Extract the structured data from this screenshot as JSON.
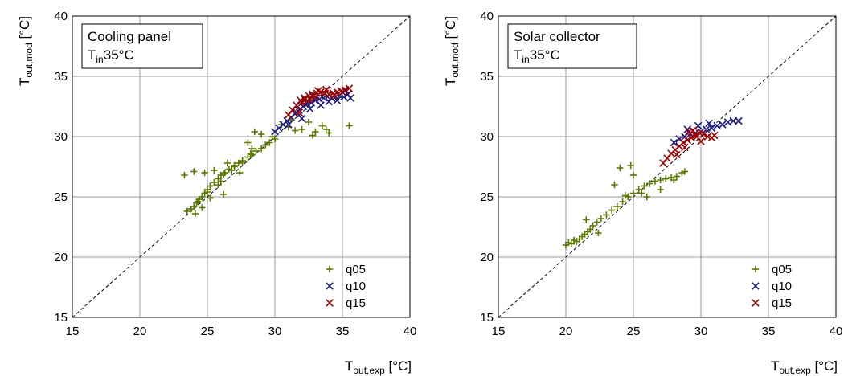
{
  "chart_data": [
    {
      "type": "scatter",
      "title": "",
      "annotation": {
        "line1": "Cooling panel",
        "line2_main": "T",
        "line2_sub": "in",
        "line2_rest": "35°C"
      },
      "xlabel": {
        "main": "T",
        "sub": "out,exp",
        "rest": " [°C]"
      },
      "ylabel": {
        "main": "T",
        "sub": "out,mod",
        "rest": " [°C]"
      },
      "xlim": [
        15,
        40
      ],
      "ylim": [
        15,
        40
      ],
      "xticks": [
        15,
        20,
        25,
        30,
        35,
        40
      ],
      "yticks": [
        15,
        20,
        25,
        30,
        35,
        40
      ],
      "grid": true,
      "reference_line": "y = x (dashed)",
      "legend_position": "bottom-right",
      "series": [
        {
          "name": "q05",
          "marker": "+",
          "color": "#5a7a00",
          "x": [
            23.5,
            23.8,
            24.0,
            24.2,
            24.4,
            24.6,
            24.8,
            25.0,
            25.2,
            25.5,
            25.8,
            26.0,
            26.3,
            26.6,
            27.0,
            27.3,
            27.6,
            28.0,
            28.3,
            28.6,
            29.0,
            29.3,
            29.6,
            30.0,
            24.1,
            24.6,
            25.2,
            26.0,
            26.8,
            27.6,
            28.2,
            23.3,
            24.0,
            24.8,
            25.5,
            26.2,
            27.0,
            28.0,
            28.5,
            29.0,
            29.8,
            30.5,
            31.0,
            31.5,
            32.0,
            32.5,
            33.0,
            33.5,
            34.0,
            35.5,
            31.2,
            32.8,
            33.8,
            28.3,
            27.4,
            26.5,
            25.8,
            24.3,
            25.0,
            26.2
          ],
          "y": [
            23.8,
            24.0,
            24.2,
            24.5,
            24.8,
            25.0,
            25.3,
            25.6,
            25.9,
            26.2,
            26.5,
            26.8,
            27.0,
            27.3,
            27.6,
            27.8,
            28.0,
            28.3,
            28.5,
            28.8,
            29.0,
            29.3,
            29.5,
            29.8,
            23.6,
            24.1,
            24.9,
            26.3,
            27.2,
            27.9,
            28.6,
            26.8,
            27.1,
            27.0,
            27.2,
            26.9,
            27.5,
            29.5,
            30.4,
            30.2,
            30.0,
            31.0,
            30.8,
            30.5,
            30.6,
            31.2,
            30.4,
            30.9,
            30.3,
            30.9,
            31.4,
            30.1,
            30.6,
            29.0,
            27.0,
            27.8,
            26.0,
            24.6,
            25.4,
            25.2
          ]
        },
        {
          "name": "q10",
          "marker": "x",
          "color": "#1a1a80",
          "x": [
            30.0,
            30.3,
            30.6,
            30.9,
            31.2,
            31.5,
            31.8,
            32.1,
            32.4,
            32.7,
            33.0,
            33.3,
            33.6,
            33.9,
            34.2,
            34.5,
            34.8,
            35.1,
            35.4,
            35.6,
            31.0,
            31.6,
            32.2,
            32.8,
            33.4,
            34.0,
            34.6,
            35.2,
            32.0,
            32.6
          ],
          "y": [
            30.4,
            30.7,
            31.0,
            31.3,
            31.6,
            31.9,
            32.2,
            32.5,
            32.7,
            32.8,
            33.0,
            33.1,
            33.2,
            33.3,
            33.2,
            33.3,
            33.4,
            33.3,
            33.5,
            33.2,
            31.0,
            32.0,
            33.1,
            33.4,
            32.6,
            32.9,
            33.0,
            33.8,
            31.5,
            32.3
          ]
        },
        {
          "name": "q15",
          "marker": "x",
          "color": "#9a0000",
          "x": [
            31.0,
            31.3,
            31.6,
            31.9,
            32.2,
            32.5,
            32.8,
            33.1,
            33.4,
            33.7,
            34.0,
            34.3,
            34.6,
            34.9,
            35.2,
            35.5,
            32.0,
            32.6,
            33.2,
            33.8,
            34.4,
            35.0,
            31.8,
            32.4,
            33.0
          ],
          "y": [
            31.8,
            32.2,
            32.6,
            33.0,
            33.2,
            33.4,
            33.5,
            33.6,
            33.7,
            33.6,
            33.5,
            33.6,
            33.7,
            33.8,
            33.9,
            34.0,
            32.8,
            33.1,
            33.8,
            33.9,
            33.4,
            33.7,
            32.0,
            33.0,
            33.3
          ]
        }
      ]
    },
    {
      "type": "scatter",
      "title": "",
      "annotation": {
        "line1": "Solar collector",
        "line2_main": "T",
        "line2_sub": "in",
        "line2_rest": "35°C"
      },
      "xlabel": {
        "main": "T",
        "sub": "out,exp",
        "rest": " [°C]"
      },
      "ylabel": {
        "main": "T",
        "sub": "out,mod",
        "rest": " [°C]"
      },
      "xlim": [
        15,
        40
      ],
      "ylim": [
        15,
        40
      ],
      "xticks": [
        15,
        20,
        25,
        30,
        35,
        40
      ],
      "yticks": [
        15,
        20,
        25,
        30,
        35,
        40
      ],
      "grid": true,
      "reference_line": "y = x (dashed)",
      "legend_position": "bottom-right",
      "series": [
        {
          "name": "q05",
          "marker": "+",
          "color": "#5a7a00",
          "x": [
            20.0,
            20.2,
            20.4,
            20.6,
            20.8,
            21.0,
            21.2,
            21.4,
            21.6,
            21.8,
            22.0,
            22.3,
            22.6,
            23.0,
            23.4,
            23.8,
            24.2,
            24.6,
            25.0,
            25.4,
            25.8,
            26.2,
            26.6,
            27.0,
            27.4,
            27.8,
            28.2,
            28.6,
            24.0,
            24.8,
            25.0,
            23.6,
            21.5,
            26.0,
            27.0,
            28.0,
            28.8,
            22.4,
            24.4,
            25.6
          ],
          "y": [
            21.0,
            21.2,
            21.1,
            21.4,
            21.3,
            21.5,
            21.7,
            21.9,
            22.1,
            22.3,
            22.6,
            22.9,
            23.2,
            23.5,
            23.9,
            24.2,
            24.6,
            25.0,
            25.3,
            25.6,
            25.9,
            26.1,
            26.3,
            26.4,
            26.5,
            26.6,
            26.7,
            27.0,
            27.4,
            27.6,
            26.8,
            26.0,
            23.1,
            25.0,
            25.6,
            26.4,
            27.1,
            22.0,
            25.1,
            25.3
          ]
        },
        {
          "name": "q10",
          "marker": "x",
          "color": "#1a1a80",
          "x": [
            28.0,
            28.4,
            28.8,
            29.2,
            29.6,
            30.0,
            30.4,
            30.8,
            31.2,
            31.6,
            32.0,
            32.4,
            32.8,
            29.0,
            29.8,
            30.6
          ],
          "y": [
            29.5,
            29.8,
            30.0,
            30.2,
            30.3,
            30.4,
            30.6,
            30.7,
            30.9,
            31.0,
            31.2,
            31.3,
            31.3,
            30.6,
            30.9,
            31.1
          ]
        },
        {
          "name": "q15",
          "marker": "x",
          "color": "#9a0000",
          "x": [
            27.2,
            27.5,
            27.8,
            28.1,
            28.4,
            28.7,
            29.0,
            29.3,
            29.6,
            29.9,
            30.2,
            30.5,
            30.8,
            31.0,
            28.2,
            28.8,
            29.4,
            30.0,
            29.1,
            29.7
          ],
          "y": [
            27.8,
            28.2,
            28.6,
            28.9,
            29.2,
            29.5,
            29.7,
            29.9,
            30.1,
            30.3,
            30.2,
            30.0,
            29.9,
            30.1,
            28.5,
            29.1,
            30.5,
            29.6,
            30.4,
            30.0
          ]
        }
      ]
    }
  ]
}
